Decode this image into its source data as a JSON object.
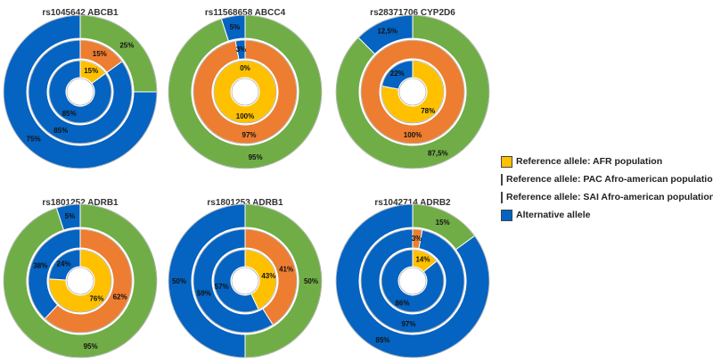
{
  "colors": {
    "afr": "#FFC000",
    "pac": "#ED7D31",
    "sai": "#70AD47",
    "alt": "#0563C1"
  },
  "legend": [
    {
      "key": "afr",
      "label": "Reference allele: AFR population"
    },
    {
      "key": "pac",
      "label": "Reference allele: PAC Afro-american  population"
    },
    {
      "key": "sai",
      "label": "Reference allele: SAI Afro-american population"
    },
    {
      "key": "alt",
      "label": "Alternative allele"
    }
  ],
  "chart_data": [
    {
      "type": "pie",
      "title": "rs1045642 ABCB1",
      "rings": [
        {
          "ring": "outer",
          "reference": "sai",
          "ref_value": 25,
          "alt_value": 75,
          "ref_label": "25%",
          "alt_label": "75%"
        },
        {
          "ring": "middle",
          "reference": "pac",
          "ref_value": 15,
          "alt_value": 85,
          "ref_label": "15%",
          "alt_label": "85%"
        },
        {
          "ring": "inner",
          "reference": "afr",
          "ref_value": 15,
          "alt_value": 85,
          "ref_label": "15%",
          "alt_label": "85%"
        }
      ]
    },
    {
      "type": "pie",
      "title": "rs11568658 ABCC4",
      "rings": [
        {
          "ring": "outer",
          "reference": "sai",
          "ref_value": 95,
          "alt_value": 5,
          "ref_label": "95%",
          "alt_label": "5%"
        },
        {
          "ring": "middle",
          "reference": "pac",
          "ref_value": 97,
          "alt_value": 3,
          "ref_label": "97%",
          "alt_label": "3%"
        },
        {
          "ring": "inner",
          "reference": "afr",
          "ref_value": 100,
          "alt_value": 0,
          "ref_label": "100%",
          "alt_label": "0%"
        }
      ]
    },
    {
      "type": "pie",
      "title": "rs28371706 CYP2D6",
      "rings": [
        {
          "ring": "outer",
          "reference": "sai",
          "ref_value": 87.5,
          "alt_value": 12.5,
          "ref_label": "87,5%",
          "alt_label": "12,5%"
        },
        {
          "ring": "middle",
          "reference": "pac",
          "ref_value": 100,
          "alt_value": 0,
          "ref_label": "100%",
          "alt_label": ""
        },
        {
          "ring": "inner",
          "reference": "afr",
          "ref_value": 78,
          "alt_value": 22,
          "ref_label": "78%",
          "alt_label": "22%"
        }
      ]
    },
    {
      "type": "pie",
      "title": "rs1801252 ADRB1",
      "rings": [
        {
          "ring": "outer",
          "reference": "sai",
          "ref_value": 95,
          "alt_value": 5,
          "ref_label": "95%",
          "alt_label": "5%"
        },
        {
          "ring": "middle",
          "reference": "pac",
          "ref_value": 62,
          "alt_value": 38,
          "ref_label": "62%",
          "alt_label": "38%"
        },
        {
          "ring": "inner",
          "reference": "afr",
          "ref_value": 76,
          "alt_value": 24,
          "ref_label": "76%",
          "alt_label": "24%"
        }
      ]
    },
    {
      "type": "pie",
      "title": "rs1801253 ADRB1",
      "rings": [
        {
          "ring": "outer",
          "reference": "sai",
          "ref_value": 50,
          "alt_value": 50,
          "ref_label": "50%",
          "alt_label": "50%"
        },
        {
          "ring": "middle",
          "reference": "pac",
          "ref_value": 41,
          "alt_value": 59,
          "ref_label": "41%",
          "alt_label": "59%"
        },
        {
          "ring": "inner",
          "reference": "afr",
          "ref_value": 43,
          "alt_value": 57,
          "ref_label": "43%",
          "alt_label": "57%"
        }
      ]
    },
    {
      "type": "pie",
      "title": "rs1042714 ADRB2",
      "rings": [
        {
          "ring": "outer",
          "reference": "sai",
          "ref_value": 15,
          "alt_value": 85,
          "ref_label": "15%",
          "alt_label": "85%"
        },
        {
          "ring": "middle",
          "reference": "pac",
          "ref_value": 3,
          "alt_value": 97,
          "ref_label": "3%",
          "alt_label": "97%"
        },
        {
          "ring": "inner",
          "reference": "afr",
          "ref_value": 14,
          "alt_value": 86,
          "ref_label": "14%",
          "alt_label": "86%"
        }
      ]
    }
  ]
}
